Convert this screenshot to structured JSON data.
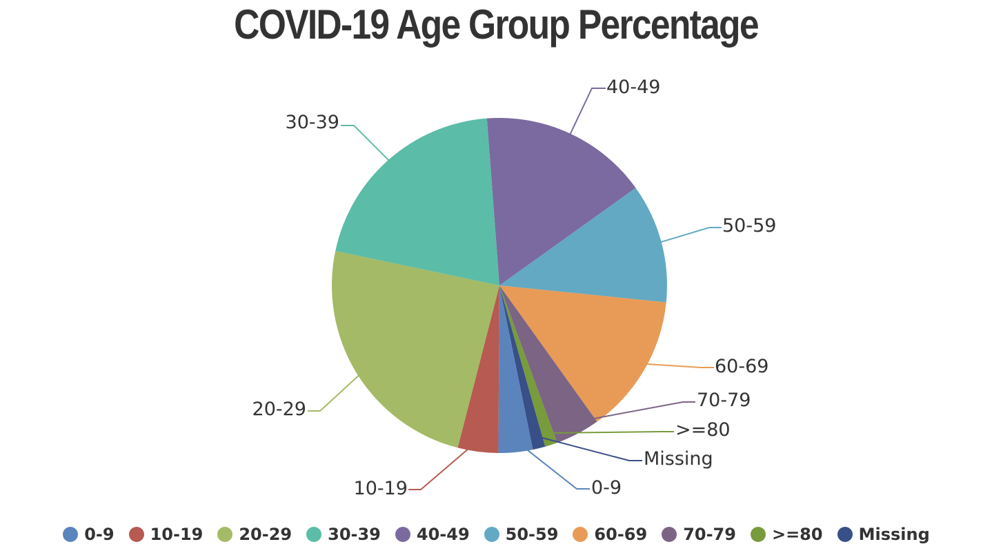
{
  "chart_data": {
    "type": "pie",
    "title": "COVID-19 Age Group Percentage",
    "slices": [
      {
        "label": "40-49",
        "value": 16.3,
        "color": "#7b6a9f"
      },
      {
        "label": "50-59",
        "value": 11.5,
        "color": "#63a9c3"
      },
      {
        "label": "60-69",
        "value": 13.5,
        "color": "#e89b57"
      },
      {
        "label": "70-79",
        "value": 4.3,
        "color": "#7c6484"
      },
      {
        "label": ">=80",
        "value": 1.2,
        "color": "#789b3c"
      },
      {
        "label": "Missing",
        "value": 1.2,
        "color": "#384f87"
      },
      {
        "label": "0-9",
        "value": 3.3,
        "color": "#5b84bd"
      },
      {
        "label": "10-19",
        "value": 3.9,
        "color": "#b75a51"
      },
      {
        "label": "20-29",
        "value": 24.3,
        "color": "#a4ba66"
      },
      {
        "label": "30-39",
        "value": 20.5,
        "color": "#5bbca8"
      }
    ],
    "legend": [
      "0-9",
      "10-19",
      "20-29",
      "30-39",
      "40-49",
      "50-59",
      "60-69",
      "70-79",
      ">=80",
      "Missing"
    ],
    "legend_position": "bottom"
  }
}
